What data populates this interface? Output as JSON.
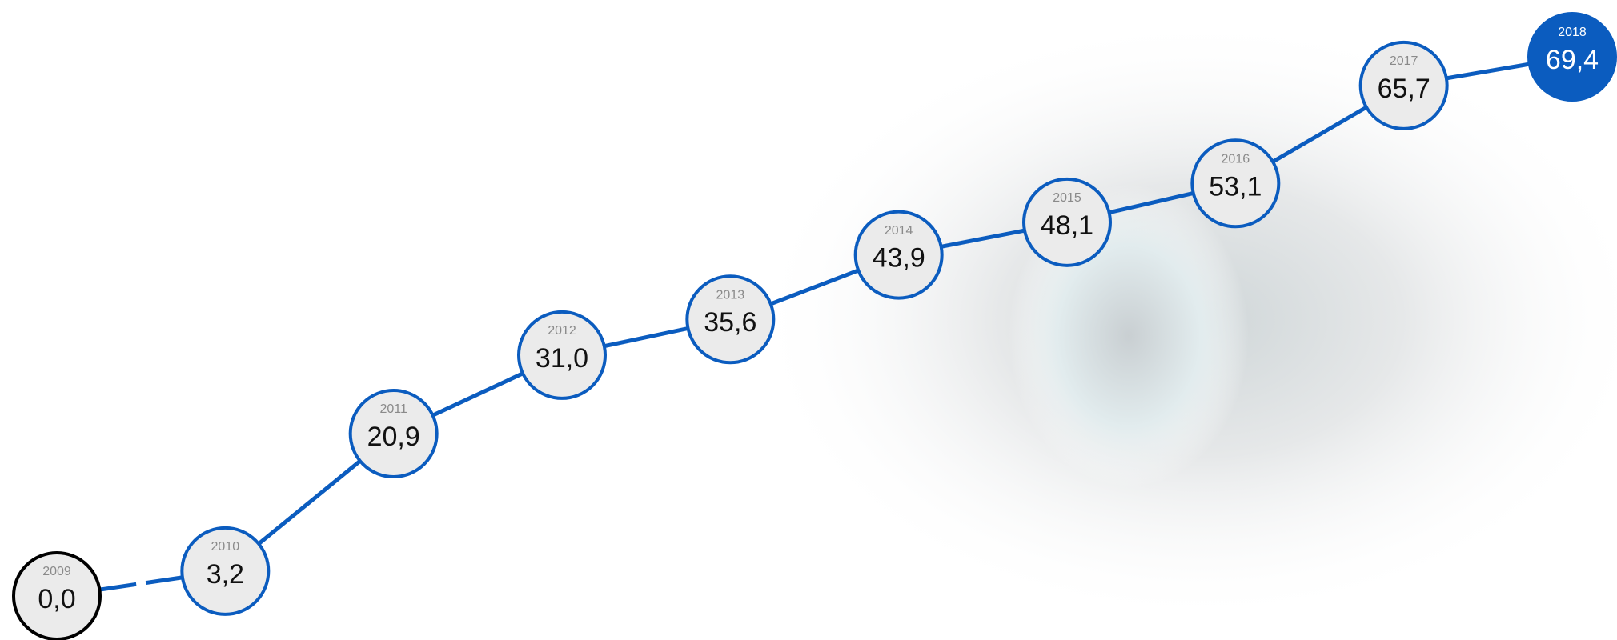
{
  "chart_data": {
    "type": "line",
    "categories": [
      "2009",
      "2010",
      "2011",
      "2012",
      "2013",
      "2014",
      "2015",
      "2016",
      "2017",
      "2018"
    ],
    "values": [
      0.0,
      3.2,
      20.9,
      31.0,
      35.6,
      43.9,
      48.1,
      53.1,
      65.7,
      69.4
    ],
    "value_labels": [
      "0,0",
      "3,2",
      "20,9",
      "31,0",
      "35,6",
      "43,9",
      "48,1",
      "53,1",
      "65,7",
      "69,4"
    ],
    "color": "#0b5cbf",
    "marker_fill": "#ebebeb"
  }
}
